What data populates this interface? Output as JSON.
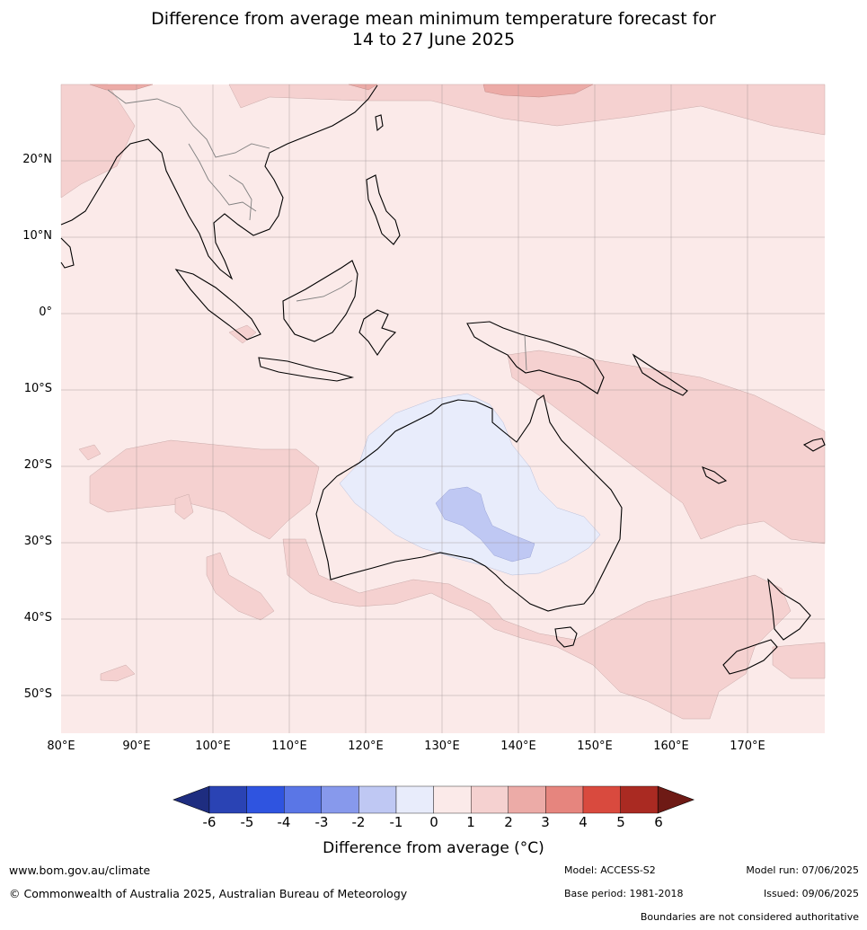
{
  "title_line1": "Difference from average mean minimum temperature forecast for",
  "title_line2": "14 to 27 June 2025",
  "lat_labels": [
    "20°N",
    "10°N",
    "0°",
    "10°S",
    "20°S",
    "30°S",
    "40°S",
    "50°S"
  ],
  "lon_labels": [
    "80°E",
    "90°E",
    "100°E",
    "110°E",
    "120°E",
    "130°E",
    "140°E",
    "150°E",
    "160°E",
    "170°E"
  ],
  "colorbar": {
    "ticks": [
      "-6",
      "-5",
      "-4",
      "-3",
      "-2",
      "-1",
      "0",
      "1",
      "2",
      "3",
      "4",
      "5",
      "6"
    ],
    "colors": [
      "#1e2d80",
      "#2a43b4",
      "#2f54e0",
      "#5a76e6",
      "#8799ec",
      "#bfc8f3",
      "#e8ecfb",
      "#fbeae9",
      "#f5d1d0",
      "#ecaba7",
      "#e6857e",
      "#d94a3e",
      "#aa2a22",
      "#6e1a15"
    ],
    "title": "Difference from average (°C)"
  },
  "footer": {
    "url": "www.bom.gov.au/climate",
    "copyright": "© Commonwealth of Australia 2025, Australian Bureau of Meteorology",
    "model": "Model: ACCESS-S2",
    "base_period": "Base period: 1981-2018",
    "model_run": "Model run: 07/06/2025",
    "issued": "Issued: 09/06/2025",
    "disclaimer": "Boundaries are not considered authoritative"
  }
}
